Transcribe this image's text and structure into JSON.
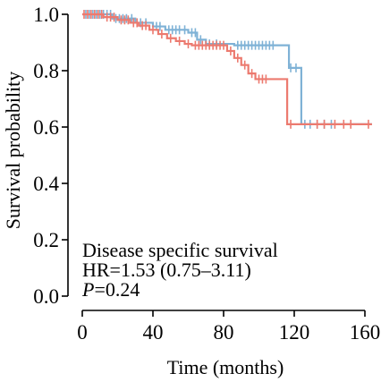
{
  "chart_data": {
    "type": "line",
    "subtype": "kaplan-meier",
    "xlabel": "Time (months)",
    "ylabel": "Survival probability",
    "xlim": [
      0,
      164
    ],
    "ylim": [
      0,
      1.0
    ],
    "xticks": [
      0,
      40,
      80,
      120,
      160
    ],
    "yticks": [
      0.0,
      0.2,
      0.4,
      0.6,
      0.8,
      1.0
    ],
    "x_tick_labels": [
      "0",
      "40",
      "80",
      "120",
      "160"
    ],
    "y_tick_labels": [
      "0.0",
      "0.2",
      "0.4",
      "0.6",
      "0.8",
      "1.0"
    ],
    "grid": false,
    "annotations": {
      "line1": "Disease specific survival",
      "line2": "HR=1.53 (0.75–3.11)",
      "p_label": "P",
      "p_value": "=0.24"
    },
    "series": [
      {
        "color": "#7fb2d6",
        "steps": [
          [
            0,
            1.0
          ],
          [
            17,
            0.985
          ],
          [
            30,
            0.97
          ],
          [
            40,
            0.957
          ],
          [
            47,
            0.945
          ],
          [
            60,
            0.935
          ],
          [
            65,
            0.91
          ],
          [
            70,
            0.895
          ],
          [
            86,
            0.89
          ],
          [
            116,
            0.89
          ],
          [
            117,
            0.81
          ],
          [
            123,
            0.81
          ],
          [
            124,
            0.61
          ],
          [
            164,
            0.61
          ]
        ],
        "censored": [
          [
            2,
            1.0
          ],
          [
            4,
            1.0
          ],
          [
            6,
            1.0
          ],
          [
            8,
            1.0
          ],
          [
            10,
            1.0
          ],
          [
            12,
            1.0
          ],
          [
            14,
            1.0
          ],
          [
            16,
            1.0
          ],
          [
            19,
            0.985
          ],
          [
            21,
            0.985
          ],
          [
            23,
            0.985
          ],
          [
            25,
            0.985
          ],
          [
            28,
            0.985
          ],
          [
            33,
            0.97
          ],
          [
            36,
            0.97
          ],
          [
            42,
            0.957
          ],
          [
            44,
            0.957
          ],
          [
            49,
            0.945
          ],
          [
            51,
            0.945
          ],
          [
            53,
            0.945
          ],
          [
            55,
            0.945
          ],
          [
            58,
            0.945
          ],
          [
            62,
            0.935
          ],
          [
            64,
            0.935
          ],
          [
            67,
            0.91
          ],
          [
            72,
            0.895
          ],
          [
            76,
            0.895
          ],
          [
            88,
            0.89
          ],
          [
            90,
            0.89
          ],
          [
            92,
            0.89
          ],
          [
            94,
            0.89
          ],
          [
            96,
            0.89
          ],
          [
            98,
            0.89
          ],
          [
            100,
            0.89
          ],
          [
            102,
            0.89
          ],
          [
            104,
            0.89
          ],
          [
            106,
            0.89
          ],
          [
            108,
            0.89
          ],
          [
            118,
            0.81
          ],
          [
            121,
            0.81
          ],
          [
            126,
            0.61
          ],
          [
            129,
            0.61
          ],
          [
            133,
            0.61
          ],
          [
            137,
            0.61
          ],
          [
            141,
            0.61
          ]
        ]
      },
      {
        "color": "#ec7a6f",
        "steps": [
          [
            0,
            1.0
          ],
          [
            12,
            0.99
          ],
          [
            20,
            0.98
          ],
          [
            27,
            0.97
          ],
          [
            32,
            0.96
          ],
          [
            38,
            0.945
          ],
          [
            43,
            0.93
          ],
          [
            48,
            0.915
          ],
          [
            53,
            0.905
          ],
          [
            58,
            0.895
          ],
          [
            62,
            0.89
          ],
          [
            82,
            0.87
          ],
          [
            86,
            0.845
          ],
          [
            90,
            0.82
          ],
          [
            94,
            0.79
          ],
          [
            98,
            0.77
          ],
          [
            115,
            0.77
          ],
          [
            116,
            0.61
          ],
          [
            164,
            0.61
          ]
        ],
        "censored": [
          [
            1,
            1.0
          ],
          [
            3,
            1.0
          ],
          [
            5,
            1.0
          ],
          [
            7,
            1.0
          ],
          [
            9,
            1.0
          ],
          [
            11,
            1.0
          ],
          [
            14,
            0.99
          ],
          [
            16,
            0.99
          ],
          [
            18,
            0.99
          ],
          [
            22,
            0.98
          ],
          [
            24,
            0.98
          ],
          [
            26,
            0.98
          ],
          [
            29,
            0.97
          ],
          [
            31,
            0.97
          ],
          [
            34,
            0.96
          ],
          [
            36,
            0.96
          ],
          [
            40,
            0.945
          ],
          [
            45,
            0.93
          ],
          [
            50,
            0.915
          ],
          [
            55,
            0.905
          ],
          [
            60,
            0.895
          ],
          [
            64,
            0.89
          ],
          [
            66,
            0.89
          ],
          [
            68,
            0.89
          ],
          [
            70,
            0.89
          ],
          [
            72,
            0.89
          ],
          [
            74,
            0.89
          ],
          [
            76,
            0.89
          ],
          [
            78,
            0.89
          ],
          [
            80,
            0.89
          ],
          [
            84,
            0.87
          ],
          [
            88,
            0.845
          ],
          [
            92,
            0.82
          ],
          [
            96,
            0.79
          ],
          [
            100,
            0.77
          ],
          [
            102,
            0.77
          ],
          [
            104,
            0.77
          ],
          [
            118,
            0.61
          ],
          [
            133,
            0.61
          ],
          [
            137,
            0.61
          ],
          [
            143,
            0.61
          ],
          [
            148,
            0.61
          ],
          [
            152,
            0.61
          ],
          [
            162,
            0.61
          ]
        ]
      }
    ]
  }
}
